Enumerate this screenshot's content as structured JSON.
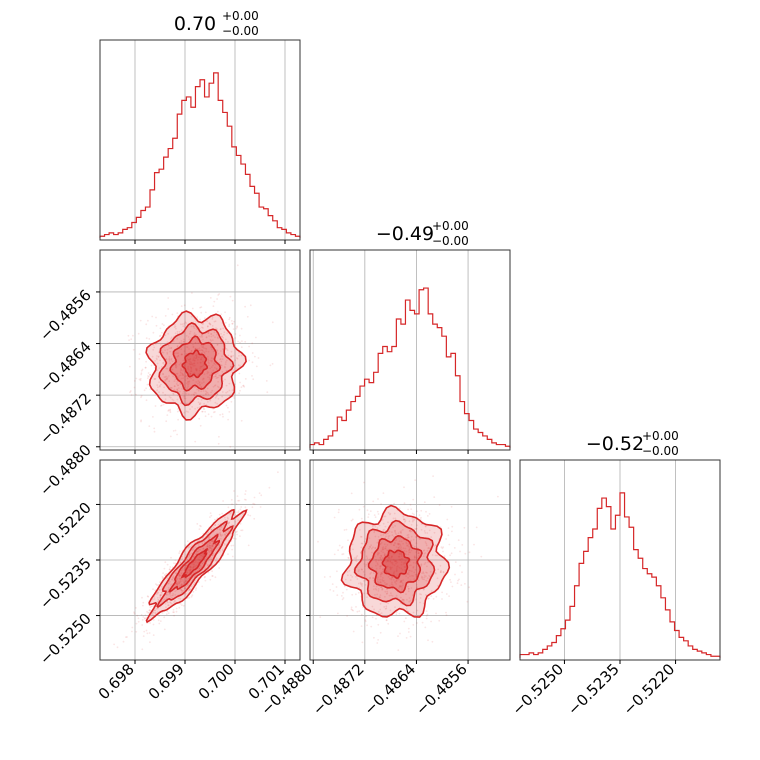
{
  "chart_data": {
    "type": "corner",
    "color": "#d62728",
    "grid": true,
    "parameters": [
      {
        "title_value": "0.70",
        "title_plus": "+0.00",
        "title_minus": "−0.00",
        "range": [
          0.6973,
          0.7013
        ],
        "ticks": [
          0.698,
          0.699,
          0.7,
          0.701
        ],
        "tick_labels": [
          "0.698",
          "0.699",
          "0.700",
          "0.701"
        ],
        "mean": 0.6992,
        "sd": 0.00045,
        "hist": [
          0.01,
          0.02,
          0.03,
          0.02,
          0.03,
          0.05,
          0.06,
          0.09,
          0.12,
          0.16,
          0.18,
          0.28,
          0.38,
          0.4,
          0.47,
          0.52,
          0.58,
          0.72,
          0.8,
          0.82,
          0.76,
          0.88,
          0.92,
          0.82,
          0.9,
          0.96,
          0.8,
          0.73,
          0.65,
          0.53,
          0.48,
          0.43,
          0.37,
          0.3,
          0.26,
          0.18,
          0.17,
          0.13,
          0.1,
          0.06,
          0.05,
          0.03,
          0.02,
          0.01
        ]
      },
      {
        "title_value": "−0.49",
        "title_plus": "+0.00",
        "title_minus": "−0.00",
        "range": [
          -0.48805,
          -0.48495
        ],
        "ticks": [
          -0.488,
          -0.4872,
          -0.4864,
          -0.4856
        ],
        "tick_labels": [
          "−0.4880",
          "−0.4872",
          "−0.4864",
          "−0.4856"
        ],
        "mean": -0.48672,
        "sd": 0.00038,
        "hist": [
          0.02,
          0.03,
          0.02,
          0.05,
          0.07,
          0.1,
          0.18,
          0.16,
          0.22,
          0.27,
          0.3,
          0.36,
          0.4,
          0.38,
          0.44,
          0.55,
          0.59,
          0.56,
          0.59,
          0.75,
          0.72,
          0.86,
          0.8,
          0.78,
          0.92,
          0.93,
          0.78,
          0.72,
          0.7,
          0.65,
          0.53,
          0.55,
          0.42,
          0.27,
          0.2,
          0.16,
          0.11,
          0.09,
          0.07,
          0.05,
          0.03,
          0.02,
          0.02,
          0.01
        ]
      },
      {
        "title_value": "−0.52",
        "title_plus": "+0.00",
        "title_minus": "−0.00",
        "range": [
          -0.5262,
          -0.5208
        ],
        "ticks": [
          -0.525,
          -0.5235,
          -0.522
        ],
        "tick_labels": [
          "−0.5250",
          "−0.5235",
          "−0.5220"
        ],
        "mean": -0.5236,
        "sd": 0.0007,
        "hist": [
          0.02,
          0.02,
          0.03,
          0.02,
          0.03,
          0.05,
          0.07,
          0.09,
          0.13,
          0.17,
          0.22,
          0.3,
          0.42,
          0.55,
          0.62,
          0.7,
          0.75,
          0.87,
          0.93,
          0.88,
          0.75,
          0.83,
          0.96,
          0.82,
          0.76,
          0.63,
          0.58,
          0.52,
          0.49,
          0.47,
          0.42,
          0.35,
          0.28,
          0.21,
          0.16,
          0.12,
          0.1,
          0.07,
          0.05,
          0.04,
          0.03,
          0.02,
          0.01,
          0.01
        ]
      }
    ],
    "pair_correlations": {
      "1_0": 0.05,
      "2_0": 0.9,
      "2_1": 0.02
    },
    "contour_sigmas": [
      0.5,
      1.0,
      1.5,
      2.0
    ],
    "num_scatter_points": 900
  }
}
